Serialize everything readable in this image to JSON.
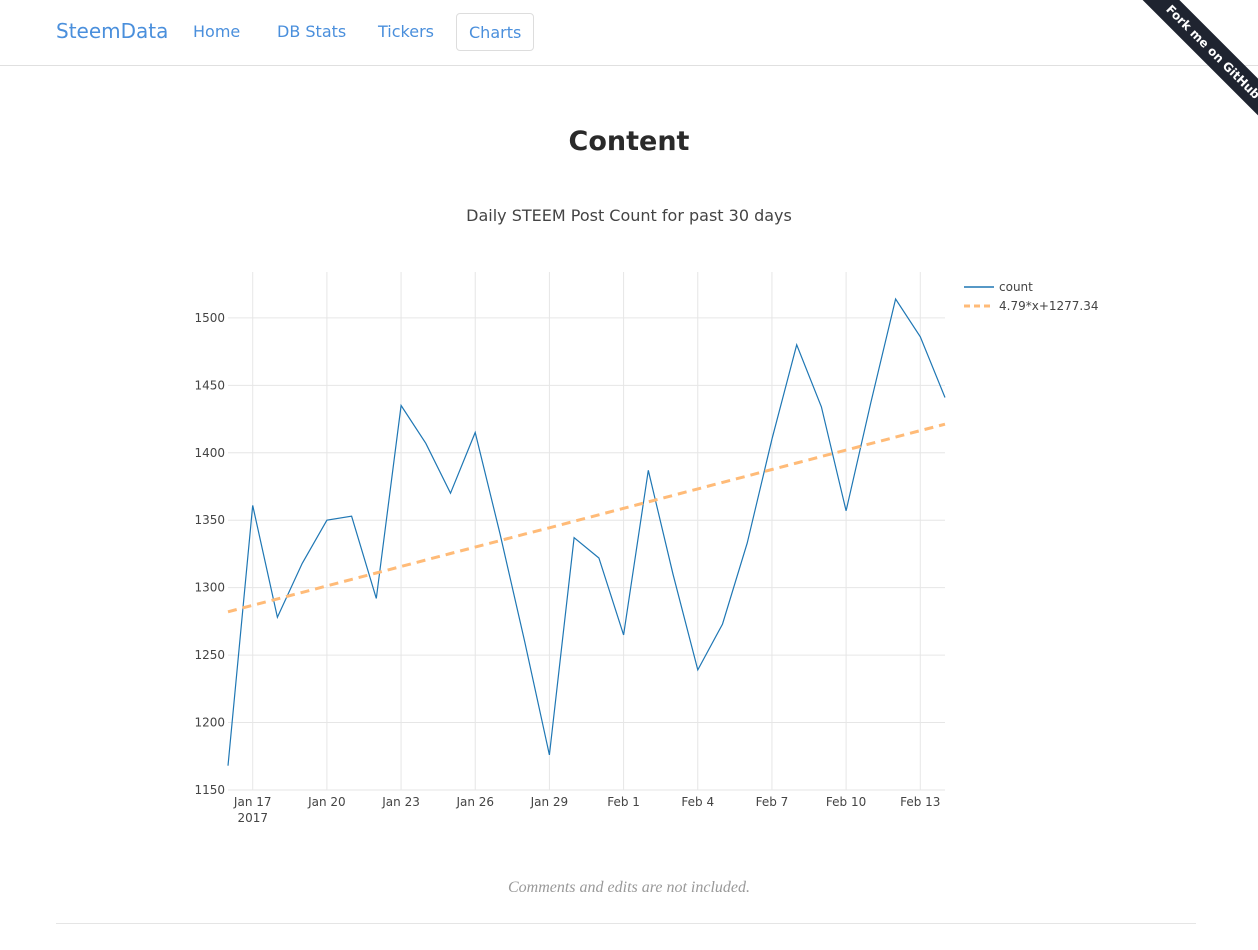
{
  "navbar": {
    "brand": "SteemData",
    "links": [
      "Home",
      "DB Stats",
      "Tickers",
      "Charts"
    ],
    "active": "Charts",
    "ribbon": "Fork me on GitHub"
  },
  "page": {
    "title": "Content",
    "note": "Comments and edits are not included."
  },
  "colors": {
    "link": "#4a8fdc",
    "count_line": "#1f77b4",
    "trend_line": "#ffbb78"
  },
  "chart_data": {
    "type": "line",
    "title": "Daily STEEM Post Count for past 30 days",
    "x": [
      "2017-01-16",
      "2017-01-17",
      "2017-01-18",
      "2017-01-19",
      "2017-01-20",
      "2017-01-21",
      "2017-01-22",
      "2017-01-23",
      "2017-01-24",
      "2017-01-25",
      "2017-01-26",
      "2017-01-27",
      "2017-01-28",
      "2017-01-29",
      "2017-01-30",
      "2017-01-31",
      "2017-02-01",
      "2017-02-02",
      "2017-02-03",
      "2017-02-04",
      "2017-02-05",
      "2017-02-06",
      "2017-02-07",
      "2017-02-08",
      "2017-02-09",
      "2017-02-10",
      "2017-02-11",
      "2017-02-12",
      "2017-02-13",
      "2017-02-14"
    ],
    "series": [
      {
        "name": "count",
        "style": "solid",
        "values": [
          1168,
          1361,
          1278,
          1318,
          1350,
          1353,
          1292,
          1435,
          1407,
          1370,
          1415,
          1340,
          1260,
          1176,
          1337,
          1322,
          1265,
          1387,
          1310,
          1239,
          1273,
          1333,
          1410,
          1480,
          1434,
          1357,
          1437,
          1514,
          1486,
          1441
        ]
      },
      {
        "name": "4.79*x+1277.34",
        "style": "dashed",
        "values": [
          1282.1,
          1286.9,
          1291.7,
          1296.5,
          1301.3,
          1306.1,
          1310.9,
          1315.7,
          1320.5,
          1325.3,
          1330.1,
          1334.9,
          1339.7,
          1344.4,
          1349.2,
          1354.0,
          1358.8,
          1363.6,
          1368.4,
          1373.2,
          1378.0,
          1382.8,
          1387.6,
          1392.4,
          1397.2,
          1402.0,
          1406.8,
          1411.6,
          1416.4,
          1421.2
        ]
      }
    ],
    "y_ticks": [
      1150,
      1200,
      1250,
      1300,
      1350,
      1400,
      1450,
      1500
    ],
    "ylim": [
      1150,
      1534
    ],
    "x_ticks": [
      {
        "index": 1,
        "label": "Jan 17",
        "sublabel": "2017"
      },
      {
        "index": 4,
        "label": "Jan 20"
      },
      {
        "index": 7,
        "label": "Jan 23"
      },
      {
        "index": 10,
        "label": "Jan 26"
      },
      {
        "index": 13,
        "label": "Jan 29"
      },
      {
        "index": 16,
        "label": "Feb 1"
      },
      {
        "index": 19,
        "label": "Feb 4"
      },
      {
        "index": 22,
        "label": "Feb 7"
      },
      {
        "index": 25,
        "label": "Feb 10"
      },
      {
        "index": 28,
        "label": "Feb 13"
      }
    ],
    "grid": true,
    "legend": "top-right"
  }
}
